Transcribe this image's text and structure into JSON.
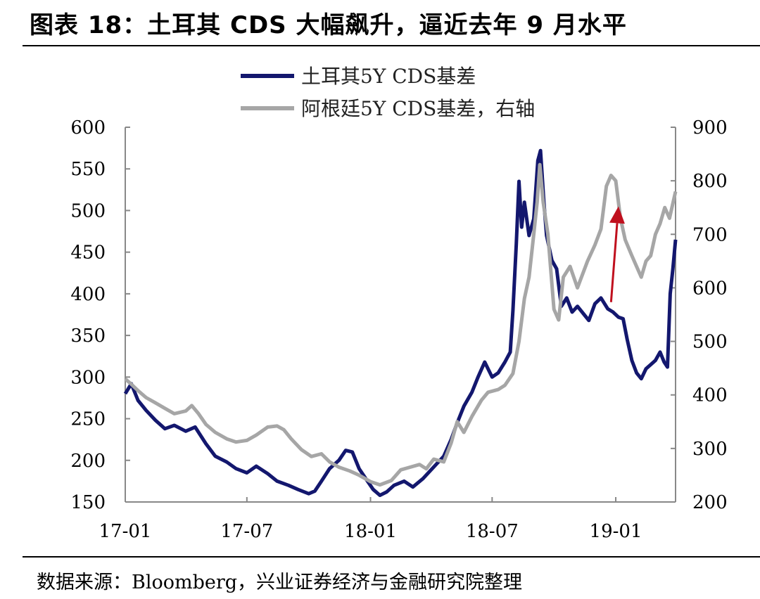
{
  "figure_title": "图表 18：土耳其 CDS 大幅飙升，逼近去年 9 月水平",
  "source_note": "数据来源：Bloomberg，兴业证券经济与金融研究院整理",
  "colors": {
    "turkey": "#13176e",
    "argentina": "#a6a6a6",
    "arrow": "#c0101e",
    "axis": "#888888"
  },
  "chart_data": {
    "type": "line",
    "title": "",
    "xlabel": "",
    "ylabel": "",
    "grid": false,
    "legend_position": "top",
    "x_ticks": [
      "17-01",
      "17-07",
      "18-01",
      "18-07",
      "19-01"
    ],
    "x_range": [
      "2017-01-01",
      "2019-03-31"
    ],
    "y_left": {
      "ticks": [
        150,
        200,
        250,
        300,
        350,
        400,
        450,
        500,
        550,
        600
      ],
      "range": [
        150,
        600
      ]
    },
    "y_right": {
      "ticks": [
        200,
        300,
        400,
        500,
        600,
        700,
        800,
        900
      ],
      "range": [
        200,
        900
      ]
    },
    "annotation": {
      "type": "arrow",
      "from": [
        "2018-12-25",
        390
      ],
      "to": [
        "2019-01-05",
        505
      ],
      "axis": "left"
    },
    "series": [
      {
        "name": "土耳其5Y CDS基差",
        "axis": "left",
        "points": [
          [
            "2017-01-01",
            280
          ],
          [
            "2017-01-10",
            292
          ],
          [
            "2017-01-20",
            272
          ],
          [
            "2017-02-01",
            260
          ],
          [
            "2017-02-15",
            248
          ],
          [
            "2017-03-01",
            238
          ],
          [
            "2017-03-15",
            242
          ],
          [
            "2017-04-01",
            235
          ],
          [
            "2017-04-15",
            240
          ],
          [
            "2017-05-01",
            220
          ],
          [
            "2017-05-15",
            205
          ],
          [
            "2017-06-01",
            198
          ],
          [
            "2017-06-15",
            190
          ],
          [
            "2017-07-01",
            185
          ],
          [
            "2017-07-15",
            193
          ],
          [
            "2017-08-01",
            184
          ],
          [
            "2017-08-15",
            175
          ],
          [
            "2017-09-01",
            170
          ],
          [
            "2017-09-15",
            165
          ],
          [
            "2017-10-01",
            160
          ],
          [
            "2017-10-10",
            163
          ],
          [
            "2017-10-20",
            175
          ],
          [
            "2017-11-01",
            190
          ],
          [
            "2017-11-15",
            200
          ],
          [
            "2017-11-25",
            212
          ],
          [
            "2017-12-05",
            210
          ],
          [
            "2017-12-15",
            190
          ],
          [
            "2017-12-25",
            178
          ],
          [
            "2018-01-05",
            165
          ],
          [
            "2018-01-15",
            158
          ],
          [
            "2018-01-25",
            162
          ],
          [
            "2018-02-05",
            170
          ],
          [
            "2018-02-20",
            175
          ],
          [
            "2018-03-05",
            168
          ],
          [
            "2018-03-20",
            178
          ],
          [
            "2018-04-05",
            192
          ],
          [
            "2018-04-20",
            205
          ],
          [
            "2018-05-01",
            225
          ],
          [
            "2018-05-10",
            245
          ],
          [
            "2018-05-20",
            265
          ],
          [
            "2018-06-01",
            282
          ],
          [
            "2018-06-10",
            300
          ],
          [
            "2018-06-20",
            318
          ],
          [
            "2018-07-01",
            300
          ],
          [
            "2018-07-10",
            305
          ],
          [
            "2018-07-20",
            318
          ],
          [
            "2018-07-28",
            330
          ],
          [
            "2018-08-01",
            380
          ],
          [
            "2018-08-06",
            460
          ],
          [
            "2018-08-10",
            535
          ],
          [
            "2018-08-14",
            480
          ],
          [
            "2018-08-18",
            510
          ],
          [
            "2018-08-25",
            470
          ],
          [
            "2018-09-01",
            490
          ],
          [
            "2018-09-07",
            560
          ],
          [
            "2018-09-11",
            572
          ],
          [
            "2018-09-16",
            510
          ],
          [
            "2018-09-20",
            470
          ],
          [
            "2018-09-28",
            440
          ],
          [
            "2018-10-05",
            430
          ],
          [
            "2018-10-12",
            385
          ],
          [
            "2018-10-20",
            395
          ],
          [
            "2018-10-28",
            378
          ],
          [
            "2018-11-05",
            385
          ],
          [
            "2018-11-15",
            375
          ],
          [
            "2018-11-22",
            368
          ],
          [
            "2018-12-01",
            388
          ],
          [
            "2018-12-10",
            395
          ],
          [
            "2018-12-20",
            382
          ],
          [
            "2018-12-28",
            378
          ],
          [
            "2019-01-05",
            372
          ],
          [
            "2019-01-12",
            370
          ],
          [
            "2019-01-18",
            345
          ],
          [
            "2019-01-25",
            320
          ],
          [
            "2019-02-01",
            305
          ],
          [
            "2019-02-08",
            298
          ],
          [
            "2019-02-15",
            310
          ],
          [
            "2019-02-22",
            315
          ],
          [
            "2019-03-01",
            320
          ],
          [
            "2019-03-08",
            330
          ],
          [
            "2019-03-14",
            318
          ],
          [
            "2019-03-19",
            312
          ],
          [
            "2019-03-23",
            400
          ],
          [
            "2019-03-27",
            430
          ],
          [
            "2019-03-31",
            465
          ]
        ]
      },
      {
        "name": "阿根廷5Y CDS基差，右轴",
        "axis": "right",
        "points": [
          [
            "2017-01-01",
            430
          ],
          [
            "2017-01-10",
            420
          ],
          [
            "2017-01-20",
            408
          ],
          [
            "2017-02-01",
            395
          ],
          [
            "2017-02-15",
            385
          ],
          [
            "2017-03-01",
            375
          ],
          [
            "2017-03-15",
            365
          ],
          [
            "2017-04-01",
            370
          ],
          [
            "2017-04-10",
            380
          ],
          [
            "2017-04-20",
            365
          ],
          [
            "2017-05-01",
            345
          ],
          [
            "2017-05-15",
            330
          ],
          [
            "2017-06-01",
            318
          ],
          [
            "2017-06-15",
            312
          ],
          [
            "2017-07-01",
            315
          ],
          [
            "2017-07-15",
            325
          ],
          [
            "2017-08-01",
            340
          ],
          [
            "2017-08-15",
            342
          ],
          [
            "2017-08-25",
            335
          ],
          [
            "2017-09-05",
            318
          ],
          [
            "2017-09-20",
            298
          ],
          [
            "2017-10-05",
            285
          ],
          [
            "2017-10-20",
            290
          ],
          [
            "2017-11-01",
            275
          ],
          [
            "2017-11-15",
            265
          ],
          [
            "2017-12-01",
            258
          ],
          [
            "2017-12-15",
            250
          ],
          [
            "2018-01-01",
            238
          ],
          [
            "2018-01-15",
            232
          ],
          [
            "2018-02-01",
            240
          ],
          [
            "2018-02-15",
            260
          ],
          [
            "2018-03-01",
            265
          ],
          [
            "2018-03-15",
            270
          ],
          [
            "2018-03-25",
            262
          ],
          [
            "2018-04-05",
            280
          ],
          [
            "2018-04-20",
            275
          ],
          [
            "2018-05-01",
            310
          ],
          [
            "2018-05-10",
            350
          ],
          [
            "2018-05-20",
            330
          ],
          [
            "2018-06-01",
            360
          ],
          [
            "2018-06-15",
            390
          ],
          [
            "2018-06-25",
            405
          ],
          [
            "2018-07-10",
            410
          ],
          [
            "2018-07-20",
            418
          ],
          [
            "2018-08-01",
            440
          ],
          [
            "2018-08-10",
            500
          ],
          [
            "2018-08-18",
            580
          ],
          [
            "2018-08-25",
            620
          ],
          [
            "2018-09-01",
            700
          ],
          [
            "2018-09-06",
            760
          ],
          [
            "2018-09-10",
            830
          ],
          [
            "2018-09-15",
            760
          ],
          [
            "2018-09-22",
            700
          ],
          [
            "2018-10-01",
            560
          ],
          [
            "2018-10-08",
            540
          ],
          [
            "2018-10-15",
            620
          ],
          [
            "2018-10-25",
            640
          ],
          [
            "2018-11-05",
            600
          ],
          [
            "2018-11-20",
            650
          ],
          [
            "2018-12-01",
            680
          ],
          [
            "2018-12-10",
            710
          ],
          [
            "2018-12-18",
            790
          ],
          [
            "2018-12-25",
            810
          ],
          [
            "2019-01-01",
            800
          ],
          [
            "2019-01-08",
            730
          ],
          [
            "2019-01-15",
            690
          ],
          [
            "2019-01-25",
            660
          ],
          [
            "2019-02-01",
            640
          ],
          [
            "2019-02-08",
            620
          ],
          [
            "2019-02-15",
            650
          ],
          [
            "2019-02-22",
            660
          ],
          [
            "2019-03-01",
            700
          ],
          [
            "2019-03-08",
            720
          ],
          [
            "2019-03-15",
            750
          ],
          [
            "2019-03-22",
            730
          ],
          [
            "2019-03-31",
            780
          ]
        ]
      }
    ]
  }
}
